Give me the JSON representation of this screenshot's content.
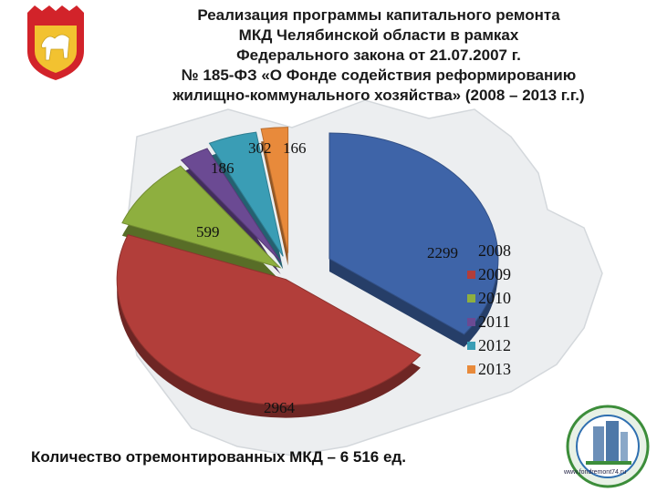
{
  "title_lines": [
    "Реализация программы капитального ремонта",
    "МКД Челябинской области в рамках",
    "Федерального закона от 21.07.2007 г.",
    "№ 185-ФЗ «О Фонде содействия реформированию",
    "жилищно-коммунального хозяйства» (2008 – 2013 г.г.)"
  ],
  "footer": "Количество отремонтированных МКД – 6 516 ед.",
  "badge_url": "www.fondremont74.ru",
  "chart_data": {
    "type": "pie",
    "title": "",
    "categories": [
      "2008",
      "2009",
      "2010",
      "2011",
      "2012",
      "2013"
    ],
    "values": [
      2299,
      2964,
      599,
      186,
      302,
      166
    ],
    "colors": [
      "#3E64A8",
      "#B23E3A",
      "#8EAF3F",
      "#6B4A93",
      "#3A9DB5",
      "#E88A3B"
    ],
    "legend_position": "right",
    "exploded": true
  }
}
